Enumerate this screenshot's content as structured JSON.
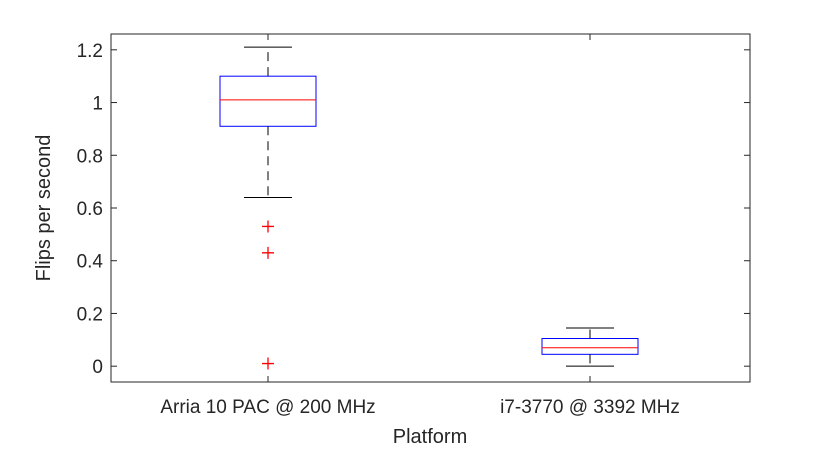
{
  "chart_data": {
    "type": "boxplot",
    "title": "",
    "xlabel": "Platform",
    "ylabel": "Flips per second",
    "ylim": [
      -0.06,
      1.26
    ],
    "yticks": [
      0,
      0.2,
      0.4,
      0.6,
      0.8,
      1,
      1.2
    ],
    "ytick_labels": [
      "0",
      "0.2",
      "0.4",
      "0.6",
      "0.8",
      "1",
      "1.2"
    ],
    "grid": false,
    "categories": [
      "Arria 10 PAC @ 200 MHz",
      "i7-3770 @ 3392 MHz"
    ],
    "boxes": [
      {
        "category": "Arria 10 PAC @ 200 MHz",
        "whisker_low": 0.64,
        "q1": 0.91,
        "median": 1.01,
        "q3": 1.1,
        "whisker_high": 1.21,
        "outliers": [
          0.53,
          0.43,
          0.01
        ]
      },
      {
        "category": "i7-3770 @ 3392 MHz",
        "whisker_low": 0.0,
        "q1": 0.045,
        "median": 0.07,
        "q3": 0.105,
        "whisker_high": 0.145,
        "outliers": []
      }
    ],
    "colors": {
      "box": "#0000ff",
      "median": "#ff0000",
      "whisker": "#000000",
      "outlier": "#ff0000",
      "axis": "#262626"
    }
  }
}
